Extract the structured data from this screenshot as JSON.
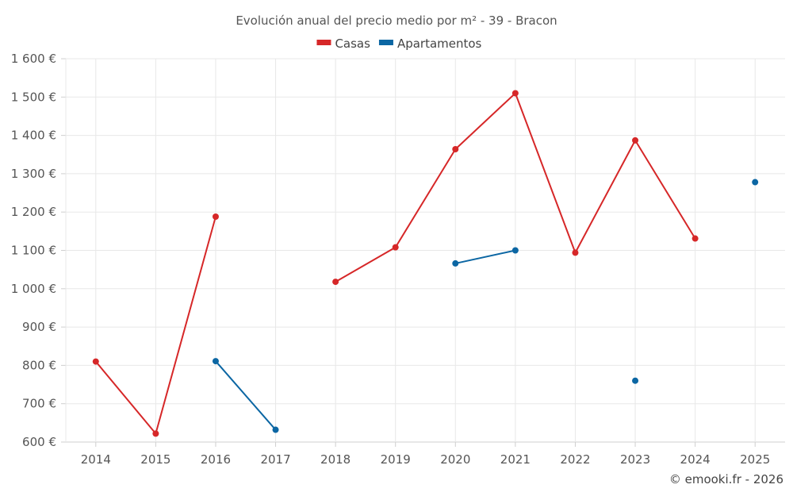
{
  "chart_data": {
    "type": "line",
    "title": "Evolución anual del precio medio por m² - 39 - Bracon",
    "categories": [
      "2014",
      "2015",
      "2016",
      "2017",
      "2018",
      "2019",
      "2020",
      "2021",
      "2022",
      "2023",
      "2024",
      "2025"
    ],
    "ylim": [
      600,
      1600
    ],
    "yticks": [
      600,
      700,
      800,
      900,
      1000,
      1100,
      1200,
      1300,
      1400,
      1500,
      1600
    ],
    "ytick_labels": [
      "600 €",
      "700 €",
      "800 €",
      "900 €",
      "1 000 €",
      "1 100 €",
      "1 200 €",
      "1 300 €",
      "1 400 €",
      "1 500 €",
      "1 600 €"
    ],
    "grid": true,
    "legend_position": "top-center",
    "series": [
      {
        "name": "Casas",
        "color": "#d62728",
        "values": [
          810,
          622,
          1188,
          null,
          1018,
          1108,
          1364,
          1510,
          1094,
          1387,
          1131,
          null
        ]
      },
      {
        "name": "Apartamentos",
        "color": "#0b66a3",
        "values": [
          null,
          null,
          811,
          632,
          null,
          null,
          1066,
          1100,
          null,
          760,
          null,
          1278
        ]
      }
    ]
  },
  "copyright": "© emooki.fr - 2026"
}
